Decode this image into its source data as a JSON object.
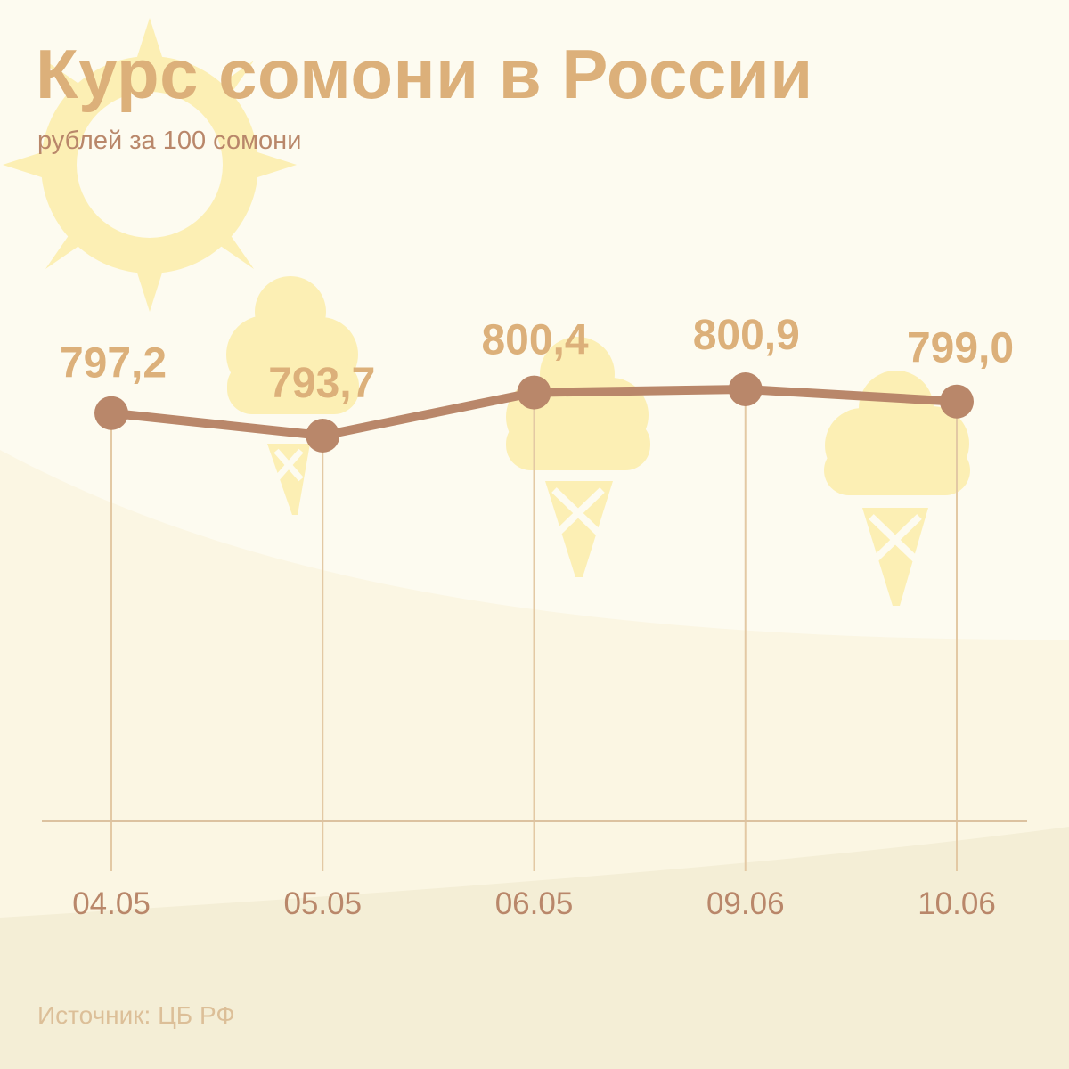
{
  "header": {
    "title": "Курс сомони в России",
    "subtitle": "рублей за 100 сомони"
  },
  "footer": {
    "source": "Источник: ЦБ РФ"
  },
  "colors": {
    "background": "#fdfbf0",
    "background_band": "#f4eed6",
    "title": "#dcb07a",
    "line": "#b9876a",
    "value_labels": "#dcb07a",
    "axis_labels": "#b9876a",
    "decoration": "#fcefb4"
  },
  "decorations": [
    "sun-icon",
    "ice-cream-icon",
    "ice-cream-icon",
    "ice-cream-icon"
  ],
  "chart_data": {
    "type": "line",
    "categories": [
      "04.05",
      "05.05",
      "06.05",
      "09.06",
      "10.06"
    ],
    "values": [
      797.2,
      793.7,
      800.4,
      800.9,
      799.0
    ],
    "value_labels": [
      "797,2",
      "793,7",
      "800,4",
      "800,9",
      "799,0"
    ],
    "title": "Курс сомони в России",
    "subtitle": "рублей за 100 сомони",
    "xlabel": "",
    "ylabel": "",
    "grid": false,
    "legend": "none"
  }
}
